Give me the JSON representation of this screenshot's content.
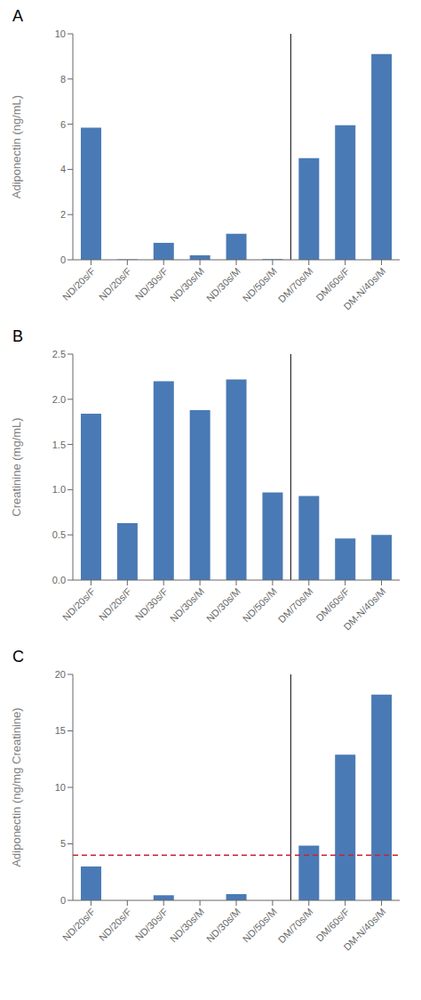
{
  "chart_data": [
    {
      "type": "bar",
      "title": "A",
      "y_label": "Adiponectin (ng/mL)",
      "categories": [
        "ND/20s/F",
        "ND/20s/F",
        "ND/30s/F",
        "ND/30s/M",
        "ND/30s/M",
        "ND/50s/M",
        "DM/70s/M",
        "DM/60s/F",
        "DM-N/40s/M"
      ],
      "values": [
        5.85,
        0.02,
        0.75,
        0.2,
        1.15,
        0.03,
        4.5,
        5.95,
        9.1
      ],
      "color": "#4a7ab5",
      "ylim": [
        0,
        10
      ],
      "yticks": [
        0,
        2,
        4,
        6,
        8,
        10
      ],
      "grid": false,
      "vline": {
        "after": 5,
        "color": "#000000"
      }
    },
    {
      "type": "bar",
      "title": "B",
      "y_label": "Creatinine (mg/mL)",
      "categories": [
        "ND/20s/F",
        "ND/20s/F",
        "ND/30s/F",
        "ND/30s/M",
        "ND/30s/M",
        "ND/50s/M",
        "DM/70s/M",
        "DM/60s/F",
        "DM-N/40s/M"
      ],
      "values": [
        1.84,
        0.63,
        2.2,
        1.88,
        2.22,
        0.97,
        0.93,
        0.46,
        0.5
      ],
      "color": "#4a7ab5",
      "ylim": [
        0,
        2.5
      ],
      "yticks": [
        {
          "value": 0,
          "label": "0.0"
        },
        0.5,
        {
          "value": 1,
          "label": "1.0"
        },
        1.5,
        {
          "value": 2,
          "label": "2.0"
        },
        2.5
      ],
      "grid": false,
      "vline": {
        "after": 5,
        "color": "#000000"
      }
    },
    {
      "type": "bar",
      "title": "C",
      "y_label": "Adiponectin (ng/mg Creatinine)",
      "categories": [
        "ND/20s/F",
        "ND/20s/F",
        "ND/30s/F",
        "ND/30s/M",
        "ND/30s/M",
        "ND/50s/M",
        "DM/70s/M",
        "DM/60s/F",
        "DM-N/40s/M"
      ],
      "values": [
        3.0,
        0.0,
        0.45,
        0.0,
        0.55,
        0.0,
        4.85,
        12.9,
        18.2
      ],
      "color": "#4a7ab5",
      "ylim": [
        0,
        20
      ],
      "yticks": [
        0,
        5,
        10,
        15,
        20
      ],
      "grid": false,
      "vline": {
        "after": 5,
        "color": "#000000"
      },
      "hline": {
        "y": 4.0,
        "color": "#cc2233",
        "line_style": "dashed"
      }
    }
  ]
}
